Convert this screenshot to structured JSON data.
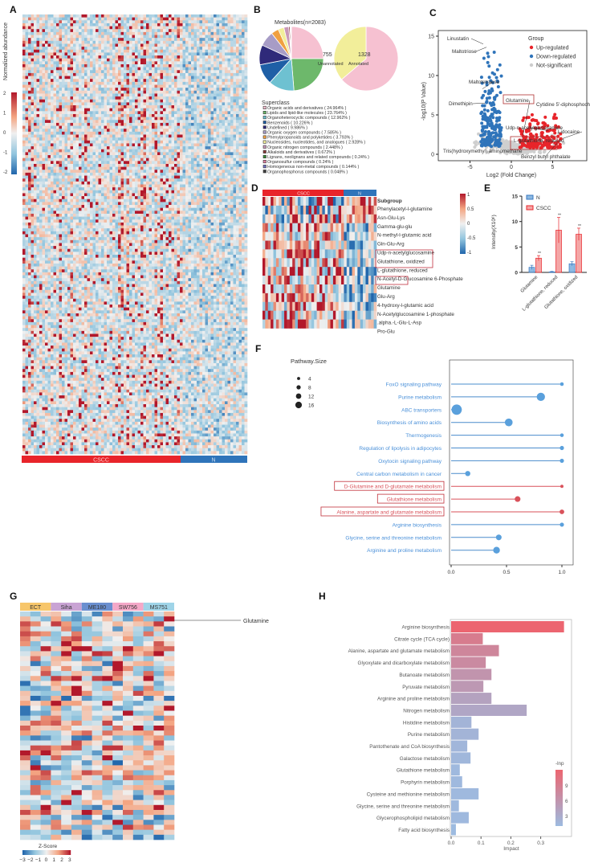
{
  "panel_labels": [
    "A",
    "B",
    "C",
    "D",
    "E",
    "F",
    "G",
    "H"
  ],
  "colors": {
    "red": "#e8242a",
    "blue": "#2f74ba",
    "grey": "#cccccc",
    "heat_high": "#b2182b",
    "heat_low": "#2166ac"
  },
  "panelA": {
    "legend_title": "Normalized abundance",
    "legend_ticks": [
      "2",
      "1",
      "0",
      "-1",
      "-2"
    ],
    "groups": [
      {
        "label": "CSCC",
        "color": "#e8242a"
      },
      {
        "label": "N",
        "color": "#2f74ba"
      }
    ]
  },
  "chart_data": [
    {
      "id": "B1",
      "type": "pie",
      "title": "Metabolites(n=2083)",
      "legend_title": "Superclass",
      "slices": [
        {
          "label": "Organic acids and derivatives ( 24.964% )",
          "value": 24.964,
          "color": "#f6c1d1"
        },
        {
          "label": "Lipids and lipid-like molecules ( 23.764% )",
          "value": 23.764,
          "color": "#6db86b"
        },
        {
          "label": "Organoheterocyclic compounds ( 12.962% )",
          "value": 12.962,
          "color": "#6ec1d1"
        },
        {
          "label": "Benzenoids ( 10.226% )",
          "value": 10.226,
          "color": "#1f5fa6"
        },
        {
          "label": "Undefined ( 9.986% )",
          "value": 9.986,
          "color": "#2f2a7a"
        },
        {
          "label": "Organic oxygen compounds ( 7.585% )",
          "value": 7.585,
          "color": "#a79cc6"
        },
        {
          "label": "Phenylpropanoids and polyketides ( 3.793% )",
          "value": 3.793,
          "color": "#f0a040"
        },
        {
          "label": "Nucleosides, nucleotides, and analogues ( 2.928% )",
          "value": 2.928,
          "color": "#f2ee9a"
        },
        {
          "label": "Organic nitrogen compounds ( 2.448% )",
          "value": 2.448,
          "color": "#c998b8"
        },
        {
          "label": "Alkaloids and derivatives ( 0.672% )",
          "value": 0.672,
          "color": "#8a3a3a"
        },
        {
          "label": "Lignans, neolignans and related compounds ( 0.24% )",
          "value": 0.24,
          "color": "#3a8a3a"
        },
        {
          "label": "Organosulfur compounds ( 0.24% )",
          "value": 0.24,
          "color": "#e080a0"
        },
        {
          "label": "Homogeneous non-metal compounds ( 0.144% )",
          "value": 0.144,
          "color": "#7070c0"
        },
        {
          "label": "Organophosphorus compounds ( 0.048% )",
          "value": 0.048,
          "color": "#404040"
        }
      ]
    },
    {
      "id": "B2",
      "type": "pie",
      "slices": [
        {
          "label": "Annotated",
          "value": 1328,
          "color": "#f6c1d1"
        },
        {
          "label": "Unannotated",
          "value": 755,
          "color": "#f2ee9a"
        }
      ]
    },
    {
      "id": "C",
      "type": "scatter",
      "xlabel": "Log2 (Fold Change)",
      "ylabel": "-log10(P Value)",
      "xlim": [
        -8.8,
        9.1
      ],
      "ylim": [
        -0.8,
        15.7
      ],
      "xticks": [
        "-5",
        "0",
        "5"
      ],
      "yticks": [
        "0",
        "5",
        "10",
        "15"
      ],
      "legend_title": "Group",
      "legend": [
        {
          "label": "Up-regulated",
          "color": "#e8242a"
        },
        {
          "label": "Down-regulated",
          "color": "#2f74ba"
        },
        {
          "label": "Not-significant",
          "color": "#cccccc"
        }
      ],
      "legend_placement": "top-right",
      "annotations": [
        {
          "label": "Linustatin",
          "x": -3.4,
          "y": 14.0
        },
        {
          "label": "Maltotriose",
          "x": -3.0,
          "y": 13.6
        },
        {
          "label": "Maltotetraose",
          "x": -3.5,
          "y": 8.3
        },
        {
          "label": "Dimethipin",
          "x": -3.2,
          "y": 6.5
        },
        {
          "label": "Glutamine",
          "x": 1.4,
          "y": 2.4,
          "boxed": true
        },
        {
          "label": "Cytidine 5'-diphosphocholine",
          "x": 5.3,
          "y": 3.8
        },
        {
          "label": "Udp-n-acetylglucosamine",
          "x": 4.5,
          "y": 3.0
        },
        {
          "label": "Lidocaine",
          "x": 6.2,
          "y": 2.0
        },
        {
          "label": "L-glutathione, reduced",
          "x": 3.5,
          "y": 2.0,
          "boxed": true
        },
        {
          "label": "Benzyl butyl phthalate",
          "x": 5.5,
          "y": 1.4
        },
        {
          "label": "Tris(hydroxymethyl) aminomethane",
          "x": -3.9,
          "y": 1.3
        }
      ]
    },
    {
      "id": "D",
      "type": "heatmap",
      "groups": [
        {
          "label": "CSCC",
          "color": "#e8242a"
        },
        {
          "label": "N",
          "color": "#2f74ba"
        }
      ],
      "row_header": "Subgroup",
      "rows": [
        "Phenylacetyl-l-glutamine",
        "Asn-Glu-Lys",
        "Gamma-glu-glu",
        "N-methyl-l-glutamic acid",
        "Gln-Glu-Arg",
        "Udp-n-acetylglucosamine",
        "Glutathione, oxidized",
        "L-glutathione, reduced",
        "N-Acetyl-D-Glucosamine 6-Phosphate",
        "Glutamine",
        "Glu-Arg",
        "4-hydroxy-l-glutamic acid",
        "N-Acetylglucosamine 1-phosphate",
        ".alpha.-L-Glu-L-Asp",
        "Pro-Glu"
      ],
      "boxed_rows": [
        "Glutathione, oxidized",
        "L-glutathione, reduced",
        "Glutamine"
      ],
      "colorbar_ticks": [
        "1",
        "0.5",
        "0",
        "-0.5",
        "-1"
      ]
    },
    {
      "id": "E",
      "type": "bar",
      "ylabel": "Intensity(X10⁶)",
      "ylim": [
        0,
        15
      ],
      "yticks": [
        "0",
        "5",
        "10",
        "15"
      ],
      "categories": [
        "Glutamine",
        "L-glutathione, reduced",
        "Glutathione, oxidized"
      ],
      "series": [
        {
          "name": "N",
          "color": "#5b9bd5",
          "values": [
            1.0,
            0.1,
            1.7
          ],
          "errors": [
            0.4,
            0.1,
            0.4
          ]
        },
        {
          "name": "CSCC",
          "color": "#f08080",
          "values": [
            2.8,
            8.3,
            7.5
          ],
          "errors": [
            0.5,
            2.5,
            1.2
          ]
        }
      ],
      "significance": [
        "**",
        "**",
        "**"
      ],
      "legend_placement": "top-left"
    },
    {
      "id": "F",
      "type": "scatter",
      "subtype": "lollipop",
      "legend_title": "Pathway.Size",
      "size_legend": [
        4,
        8,
        12,
        16
      ],
      "xlim": [
        0,
        1.1
      ],
      "xticks": [
        "0.0",
        "0.5",
        "1.0"
      ],
      "categories": [
        "FoxO signaling pathway",
        "Purine metabolism",
        "ABC transporters",
        "Biosynthesis of amino acids",
        "Thermogenesis",
        "Regulation of lipolysis in adipocytes",
        "Oxytocin signaling pathway",
        "Central carbon metabolism in cancer",
        "D-Glutamine and D-glutamate metabolism",
        "Glutathione metabolism",
        "Alanine, aspartate and glutamate metabolism",
        "Arginine biosynthesis",
        "Glycine, serine and threonine metabolism",
        "Arginine and proline metabolism"
      ],
      "values": [
        1.0,
        0.81,
        0.05,
        0.52,
        1.0,
        1.0,
        1.0,
        0.15,
        1.0,
        0.6,
        1.0,
        1.0,
        0.43,
        0.41
      ],
      "sizes": [
        3,
        12,
        16,
        11,
        3,
        4,
        4,
        6,
        2,
        7,
        5,
        4,
        7,
        9
      ],
      "highlighted": [
        false,
        false,
        false,
        false,
        false,
        false,
        false,
        false,
        true,
        true,
        true,
        false,
        false,
        false
      ]
    },
    {
      "id": "G",
      "type": "heatmap",
      "groups": [
        {
          "label": "ECT",
          "color": "#f7c66b"
        },
        {
          "label": "Siha",
          "color": "#c9a3d4"
        },
        {
          "label": "ME180",
          "color": "#6a8fd0"
        },
        {
          "label": "SW756",
          "color": "#f5a8c8"
        },
        {
          "label": "MS751",
          "color": "#9fd4e8"
        }
      ],
      "row_annotation": "Glutamine",
      "legend_title": "Z-Score",
      "colorbar_ticks": [
        "−3",
        "−2",
        "−1",
        "0",
        "1",
        "2",
        "3"
      ]
    },
    {
      "id": "H",
      "type": "bar",
      "orientation": "horizontal",
      "xlabel": "Impact",
      "xlim": [
        0,
        0.4
      ],
      "xticks": [
        "0.0",
        "0.1",
        "0.2",
        "0.3"
      ],
      "categories": [
        "Arginine biosynthesis",
        "Citrate cycle (TCA cycle)",
        "Alanine, aspartate and glutamate metabolism",
        "Glyoxylate and dicarboxylate metabolism",
        "Butanoate metabolism",
        "Pyruvate metabolism",
        "Arginine and proline metabolism",
        "Nitrogen metabolism",
        "Histidine metabolism",
        "Purine metabolism",
        "Pantothenate and CoA biosynthesis",
        "Galactose metabolism",
        "Glutathione metabolism",
        "Porphyrin metabolism",
        "Cysteine and methionine metabolism",
        "Glycine, serine and threonine metabolism",
        "Glycerophospholipid metabolism",
        "Fatty acid biosynthesis"
      ],
      "values": [
        0.378,
        0.106,
        0.16,
        0.116,
        0.135,
        0.108,
        0.135,
        0.253,
        0.068,
        0.092,
        0.054,
        0.065,
        0.029,
        0.037,
        0.092,
        0.026,
        0.059,
        0.016
      ],
      "color_values": [
        11,
        8.5,
        7.5,
        7,
        6,
        5.5,
        4.5,
        4,
        2.5,
        2.5,
        2.3,
        2.2,
        2,
        2,
        2,
        2,
        2,
        1.8
      ],
      "legend_title": "-lnp",
      "colorbar_ticks": [
        "9",
        "6",
        "3"
      ],
      "color_range": [
        "#9dbbe0",
        "#ec6570"
      ]
    }
  ]
}
